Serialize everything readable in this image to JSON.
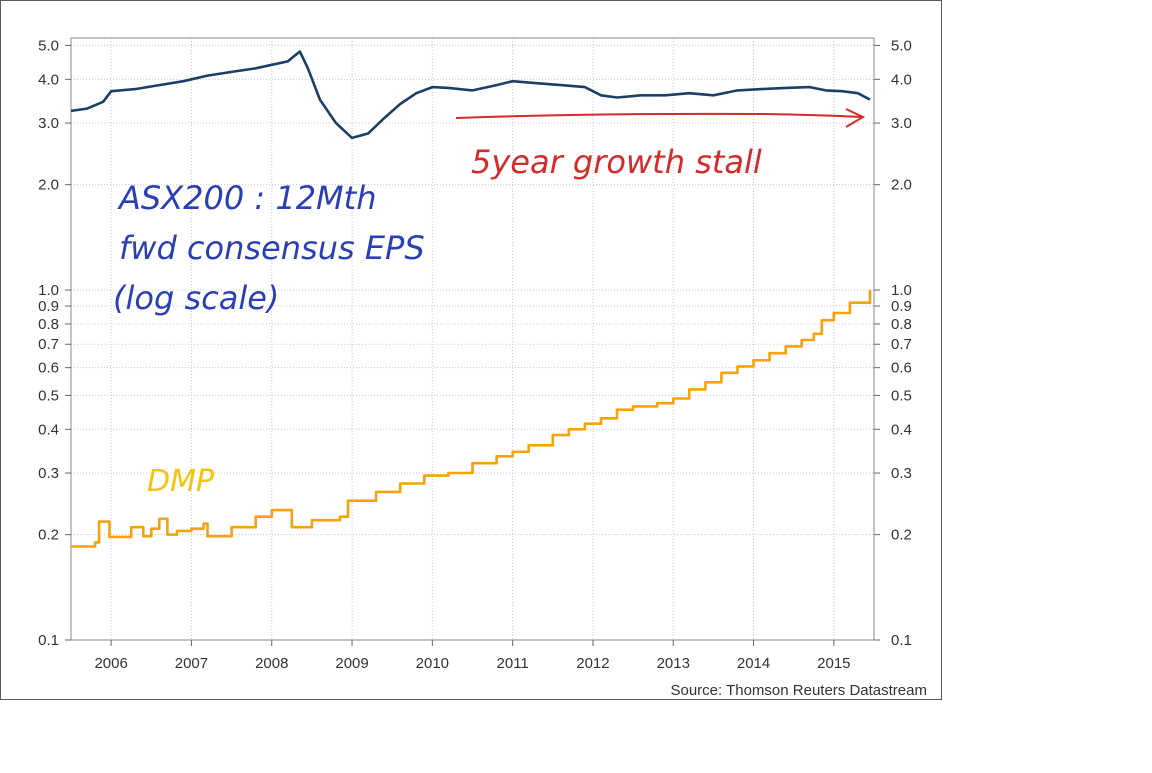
{
  "chart_data": {
    "type": "line",
    "yscale": "log",
    "ylim": [
      0.1,
      5.0
    ],
    "y_ticks": [
      {
        "value": 5.0,
        "label": "5.0"
      },
      {
        "value": 4.0,
        "label": "4.0"
      },
      {
        "value": 3.0,
        "label": "3.0"
      },
      {
        "value": 2.0,
        "label": "2.0"
      },
      {
        "value": 1.0,
        "label": "1.0"
      },
      {
        "value": 0.9,
        "label": "0.9"
      },
      {
        "value": 0.8,
        "label": "0.8"
      },
      {
        "value": 0.7,
        "label": "0.7"
      },
      {
        "value": 0.6,
        "label": "0.6"
      },
      {
        "value": 0.5,
        "label": "0.5"
      },
      {
        "value": 0.4,
        "label": "0.4"
      },
      {
        "value": 0.3,
        "label": "0.3"
      },
      {
        "value": 0.2,
        "label": "0.2"
      },
      {
        "value": 0.1,
        "label": "0.1"
      }
    ],
    "x_ticks": [
      "2006",
      "2007",
      "2008",
      "2009",
      "2010",
      "2011",
      "2012",
      "2013",
      "2014",
      "2015"
    ],
    "xlim": [
      2005.5,
      2015.5
    ],
    "grid": true,
    "series": [
      {
        "name": "ASX200",
        "color": "#1c3f66",
        "x": [
          2005.5,
          2005.7,
          2005.9,
          2006.0,
          2006.3,
          2006.6,
          2006.9,
          2007.2,
          2007.5,
          2007.8,
          2008.0,
          2008.2,
          2008.3,
          2008.35,
          2008.45,
          2008.6,
          2008.8,
          2009.0,
          2009.2,
          2009.4,
          2009.6,
          2009.8,
          2010.0,
          2010.2,
          2010.5,
          2010.8,
          2011.0,
          2011.3,
          2011.6,
          2011.9,
          2012.1,
          2012.3,
          2012.6,
          2012.9,
          2013.2,
          2013.5,
          2013.8,
          2014.1,
          2014.4,
          2014.7,
          2014.9,
          2015.1,
          2015.3,
          2015.45
        ],
        "values": [
          3.25,
          3.3,
          3.45,
          3.7,
          3.75,
          3.85,
          3.95,
          4.1,
          4.2,
          4.3,
          4.4,
          4.5,
          4.7,
          4.8,
          4.3,
          3.5,
          3.0,
          2.72,
          2.8,
          3.1,
          3.4,
          3.65,
          3.8,
          3.78,
          3.72,
          3.85,
          3.95,
          3.9,
          3.85,
          3.8,
          3.6,
          3.55,
          3.6,
          3.6,
          3.65,
          3.6,
          3.72,
          3.75,
          3.78,
          3.8,
          3.72,
          3.7,
          3.65,
          3.5
        ]
      },
      {
        "name": "DMP",
        "color": "#f5a20d",
        "step": true,
        "x": [
          2005.5,
          2005.8,
          2005.85,
          2005.98,
          2006.25,
          2006.4,
          2006.5,
          2006.6,
          2006.7,
          2006.82,
          2007.0,
          2007.15,
          2007.2,
          2007.5,
          2007.8,
          2008.0,
          2008.25,
          2008.5,
          2008.85,
          2008.95,
          2009.3,
          2009.6,
          2009.9,
          2010.2,
          2010.5,
          2010.8,
          2011.0,
          2011.2,
          2011.5,
          2011.7,
          2011.9,
          2012.1,
          2012.3,
          2012.5,
          2012.8,
          2013.0,
          2013.2,
          2013.4,
          2013.6,
          2013.8,
          2014.0,
          2014.2,
          2014.4,
          2014.6,
          2014.75,
          2014.85,
          2015.0,
          2015.2,
          2015.45
        ],
        "values": [
          0.185,
          0.19,
          0.218,
          0.197,
          0.21,
          0.198,
          0.208,
          0.222,
          0.2,
          0.205,
          0.208,
          0.215,
          0.198,
          0.21,
          0.225,
          0.235,
          0.21,
          0.22,
          0.225,
          0.25,
          0.265,
          0.28,
          0.295,
          0.3,
          0.32,
          0.335,
          0.345,
          0.36,
          0.385,
          0.4,
          0.415,
          0.43,
          0.455,
          0.465,
          0.475,
          0.49,
          0.52,
          0.545,
          0.58,
          0.605,
          0.63,
          0.66,
          0.69,
          0.72,
          0.75,
          0.82,
          0.86,
          0.92,
          1.0
        ]
      }
    ]
  },
  "source_label": "Source: Thomson Reuters Datastream",
  "annotations": {
    "growth_stall": "5year growth stall",
    "asx_line1": "ASX200 : 12Mth",
    "asx_line2": "fwd consensus EPS",
    "asx_line3": "(log scale)",
    "dmp": "DMP"
  },
  "colors": {
    "asx_line": "#1c3f66",
    "dmp_line": "#f5a20d",
    "annotation_red": "#d42a2a",
    "annotation_blue": "#2a3fb5",
    "annotation_yellow": "#f5c20d",
    "grid": "#c8c8c8"
  }
}
